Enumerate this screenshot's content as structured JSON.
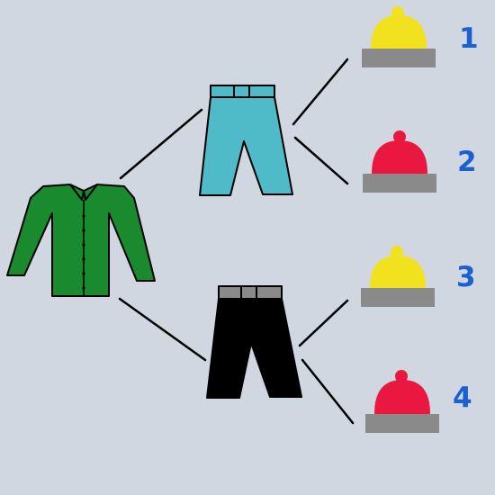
{
  "diagram": {
    "root": {
      "item": "shirt",
      "icon": "shirt-icon",
      "color": "#1a8a2e"
    },
    "pants": [
      {
        "id": "pants-blue",
        "icon": "pants-icon",
        "color": "#4fbac8",
        "belt_color": "#4fbac8"
      },
      {
        "id": "pants-black",
        "icon": "pants-icon",
        "color": "#000000",
        "belt_color": "#8a8a8a"
      }
    ],
    "hats": [
      {
        "label": "1",
        "icon": "hat-icon",
        "color": "#f2e11e",
        "brim_color": "#8a8a8a",
        "parent": "pants-blue"
      },
      {
        "label": "2",
        "icon": "hat-icon",
        "color": "#ea1740",
        "brim_color": "#8a8a8a",
        "parent": "pants-blue"
      },
      {
        "label": "3",
        "icon": "hat-icon",
        "color": "#f2e11e",
        "brim_color": "#8a8a8a",
        "parent": "pants-black"
      },
      {
        "label": "4",
        "icon": "hat-icon",
        "color": "#ea1740",
        "brim_color": "#8a8a8a",
        "parent": "pants-black"
      }
    ],
    "colors": {
      "background": "#d0d7e0",
      "label": "#1c5fd1",
      "line": "#000000"
    }
  }
}
